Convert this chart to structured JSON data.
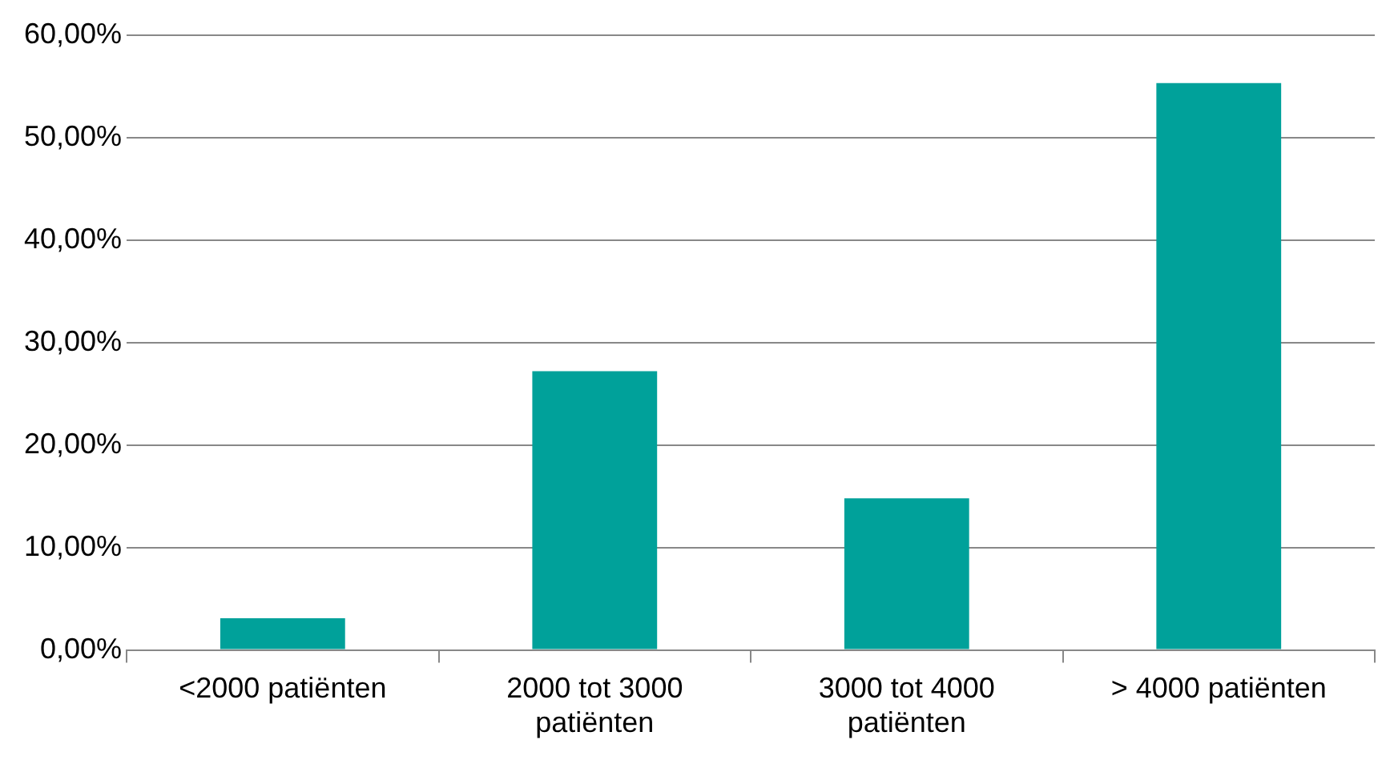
{
  "chart_data": {
    "type": "bar",
    "categories": [
      "<2000 patiënten",
      "2000 tot 3000 patiënten",
      "3000 tot 4000 patiënten",
      "> 4000 patiënten"
    ],
    "values": [
      3.1,
      27.2,
      14.8,
      55.3
    ],
    "color": "#00a19a",
    "ylim": [
      0,
      60
    ],
    "yticks": [
      {
        "value": 0,
        "label": "0,00%"
      },
      {
        "value": 10,
        "label": "10,00%"
      },
      {
        "value": 20,
        "label": "20,00%"
      },
      {
        "value": 30,
        "label": "30,00%"
      },
      {
        "value": 40,
        "label": "40,00%"
      },
      {
        "value": 50,
        "label": "50,00%"
      },
      {
        "value": 60,
        "label": "60,00%"
      }
    ],
    "grid": "y",
    "legend": false
  }
}
